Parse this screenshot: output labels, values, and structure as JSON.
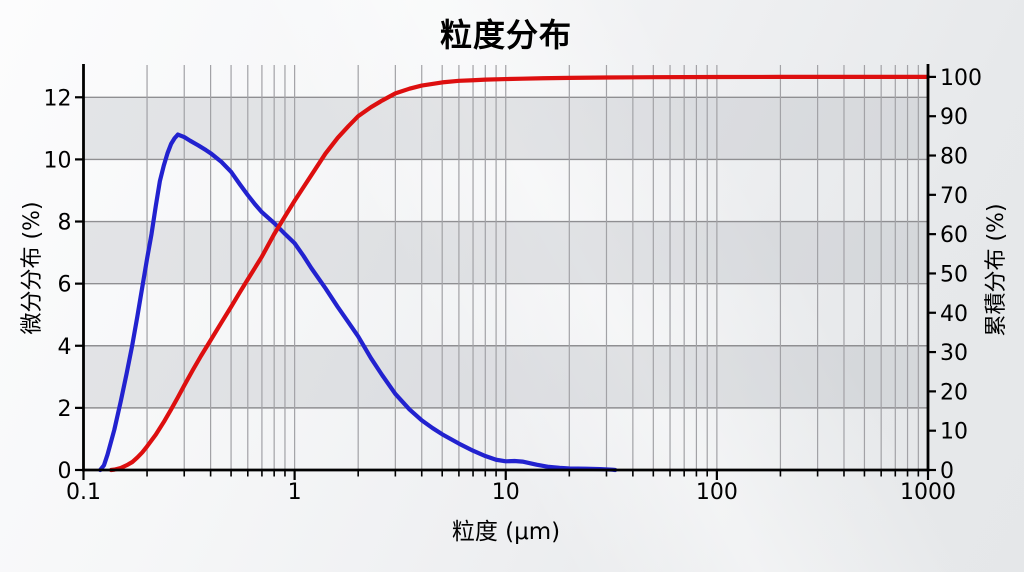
{
  "chart_data": {
    "type": "line",
    "title": "粒度分布",
    "x_axis": {
      "title": "粒度 (μm)",
      "scale": "log",
      "min": 0.1,
      "max": 1000,
      "tick_values": [
        0.1,
        1,
        10,
        100,
        1000
      ],
      "tick_labels": [
        "0.1",
        "1",
        "10",
        "100",
        "1000"
      ],
      "minor_ticks": "log multiples 2-9 per decade",
      "grid": "vertical gridlines at all log minor and major positions"
    },
    "left_axis": {
      "title": "微分分布 (%)",
      "min": 0,
      "max": 12,
      "tick_values": [
        0,
        2,
        4,
        6,
        8,
        10,
        12
      ],
      "tick_labels": [
        "0",
        "2",
        "4",
        "6",
        "8",
        "10",
        "12"
      ],
      "grid_values": [
        2,
        4,
        6,
        8,
        10,
        12
      ]
    },
    "right_axis": {
      "title": "累積分布 (%)",
      "min": 0,
      "max": 100,
      "tick_values": [
        0,
        10,
        20,
        30,
        40,
        50,
        60,
        70,
        80,
        90,
        100
      ],
      "tick_labels": [
        "0",
        "10",
        "20",
        "30",
        "40",
        "50",
        "60",
        "70",
        "80",
        "90",
        "100"
      ]
    },
    "bands_left_axis": [
      [
        10,
        12
      ],
      [
        6,
        8
      ],
      [
        2,
        4
      ]
    ],
    "legend": "none",
    "series": [
      {
        "name": "微分分布",
        "axis": "left",
        "color": "#2222cf",
        "points": [
          [
            0.12,
            0
          ],
          [
            0.125,
            0.15
          ],
          [
            0.13,
            0.5
          ],
          [
            0.14,
            1.3
          ],
          [
            0.15,
            2.2
          ],
          [
            0.16,
            3.1
          ],
          [
            0.17,
            4.0
          ],
          [
            0.18,
            4.95
          ],
          [
            0.19,
            5.9
          ],
          [
            0.2,
            6.8
          ],
          [
            0.21,
            7.6
          ],
          [
            0.22,
            8.5
          ],
          [
            0.23,
            9.3
          ],
          [
            0.24,
            9.8
          ],
          [
            0.25,
            10.2
          ],
          [
            0.26,
            10.5
          ],
          [
            0.27,
            10.68
          ],
          [
            0.28,
            10.8
          ],
          [
            0.3,
            10.72
          ],
          [
            0.32,
            10.6
          ],
          [
            0.35,
            10.45
          ],
          [
            0.38,
            10.3
          ],
          [
            0.4,
            10.2
          ],
          [
            0.45,
            9.92
          ],
          [
            0.5,
            9.6
          ],
          [
            0.55,
            9.2
          ],
          [
            0.6,
            8.85
          ],
          [
            0.65,
            8.55
          ],
          [
            0.7,
            8.3
          ],
          [
            0.8,
            7.95
          ],
          [
            0.9,
            7.6
          ],
          [
            1.0,
            7.3
          ],
          [
            1.1,
            6.9
          ],
          [
            1.2,
            6.5
          ],
          [
            1.4,
            5.85
          ],
          [
            1.6,
            5.25
          ],
          [
            1.8,
            4.75
          ],
          [
            2.0,
            4.3
          ],
          [
            2.3,
            3.6
          ],
          [
            2.6,
            3.05
          ],
          [
            3.0,
            2.45
          ],
          [
            3.5,
            1.95
          ],
          [
            4.0,
            1.6
          ],
          [
            4.5,
            1.35
          ],
          [
            5.0,
            1.15
          ],
          [
            6.0,
            0.85
          ],
          [
            7.0,
            0.62
          ],
          [
            8.0,
            0.45
          ],
          [
            9.0,
            0.33
          ],
          [
            10,
            0.28
          ],
          [
            11,
            0.29
          ],
          [
            12,
            0.27
          ],
          [
            13,
            0.22
          ],
          [
            14,
            0.17
          ],
          [
            16,
            0.1
          ],
          [
            18,
            0.07
          ],
          [
            20,
            0.05
          ],
          [
            24,
            0.04
          ],
          [
            28,
            0.03
          ],
          [
            32,
            0.01
          ],
          [
            33,
            0
          ]
        ]
      },
      {
        "name": "累積分布",
        "axis": "right",
        "color": "#dd0f0f",
        "points": [
          [
            0.135,
            0
          ],
          [
            0.14,
            0.1
          ],
          [
            0.15,
            0.5
          ],
          [
            0.16,
            1.2
          ],
          [
            0.17,
            2.0
          ],
          [
            0.18,
            3.2
          ],
          [
            0.19,
            4.5
          ],
          [
            0.2,
            6.0
          ],
          [
            0.22,
            9.0
          ],
          [
            0.24,
            12.2
          ],
          [
            0.26,
            15.4
          ],
          [
            0.28,
            18.5
          ],
          [
            0.3,
            21.5
          ],
          [
            0.33,
            25.5
          ],
          [
            0.36,
            29.0
          ],
          [
            0.4,
            33.0
          ],
          [
            0.45,
            37.5
          ],
          [
            0.5,
            41.5
          ],
          [
            0.55,
            45.2
          ],
          [
            0.6,
            48.5
          ],
          [
            0.65,
            51.5
          ],
          [
            0.7,
            54.3
          ],
          [
            0.8,
            60.0
          ],
          [
            0.9,
            64.5
          ],
          [
            1.0,
            68.5
          ],
          [
            1.1,
            71.9
          ],
          [
            1.2,
            75.0
          ],
          [
            1.4,
            80.5
          ],
          [
            1.6,
            84.5
          ],
          [
            1.8,
            87.5
          ],
          [
            2.0,
            90.0
          ],
          [
            2.3,
            92.3
          ],
          [
            2.6,
            94.0
          ],
          [
            3.0,
            95.8
          ],
          [
            3.5,
            97.0
          ],
          [
            4.0,
            97.8
          ],
          [
            5.0,
            98.6
          ],
          [
            6.0,
            99.0
          ],
          [
            7.0,
            99.15
          ],
          [
            8.0,
            99.3
          ],
          [
            10,
            99.45
          ],
          [
            12,
            99.55
          ],
          [
            15,
            99.65
          ],
          [
            20,
            99.75
          ],
          [
            30,
            99.85
          ],
          [
            50,
            99.92
          ],
          [
            100,
            99.97
          ],
          [
            200,
            100
          ],
          [
            500,
            100
          ],
          [
            1000,
            100
          ]
        ]
      }
    ],
    "colors": {
      "differential_line": "#2222cf",
      "cumulative_line": "#dd0f0f",
      "axis": "#000000",
      "grid_horizontal": "#8f8f92",
      "grid_vertical": "#a2a2a6",
      "band": "rgba(170,173,181,0.28)",
      "background_top": "#fcfcfd",
      "background_bottom": "#e5e7e9"
    }
  }
}
